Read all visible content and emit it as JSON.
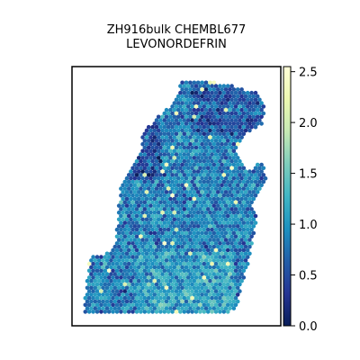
{
  "chart_data": {
    "type": "heatmap",
    "title_lines": [
      "ZH916bulk CHEMBL677",
      "LEVONORDEFRIN"
    ],
    "xlabel": "",
    "ylabel": "",
    "grid": false,
    "colorbar": {
      "colormap": "YlGnBu_r",
      "vmin": 0.0,
      "vmax": 2.55,
      "ticks": [
        0.0,
        0.5,
        1.0,
        1.5,
        2.0,
        2.5
      ],
      "tick_labels": [
        "0.0",
        "0.5",
        "1.0",
        "1.5",
        "2.0",
        "2.5"
      ],
      "position": "right"
    },
    "spots": {
      "description_free": true,
      "mean_value": 0.85,
      "typical_range": [
        0.3,
        1.4
      ],
      "max_value": 2.5
    }
  }
}
